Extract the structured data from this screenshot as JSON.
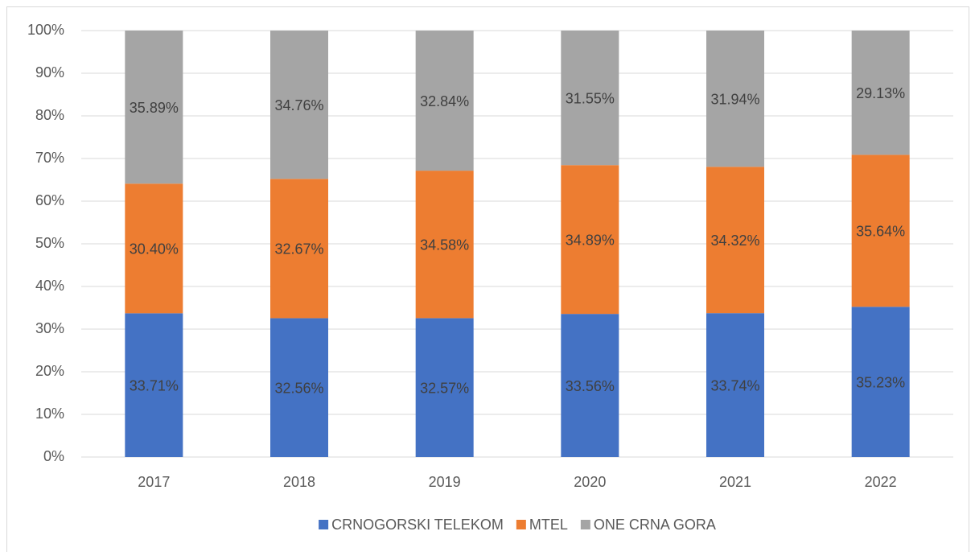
{
  "chart_data": {
    "type": "bar",
    "stacked": true,
    "categories": [
      "2017",
      "2018",
      "2019",
      "2020",
      "2021",
      "2022"
    ],
    "series": [
      {
        "name": "CRNOGORSKI TELEKOM",
        "color": "#4472c4",
        "values": [
          33.71,
          32.56,
          32.57,
          33.56,
          33.74,
          35.23
        ],
        "value_labels": [
          "33.71%",
          "32.56%",
          "32.57%",
          "33.56%",
          "33.74%",
          "35.23%"
        ]
      },
      {
        "name": "MTEL",
        "color": "#ed7d31",
        "values": [
          30.4,
          32.67,
          34.58,
          34.89,
          34.32,
          35.64
        ],
        "value_labels": [
          "30.40%",
          "32.67%",
          "34.58%",
          "34.89%",
          "34.32%",
          "35.64%"
        ]
      },
      {
        "name": "ONE CRNA GORA",
        "color": "#a5a5a5",
        "values": [
          35.89,
          34.76,
          32.84,
          31.55,
          31.94,
          29.13
        ],
        "value_labels": [
          "35.89%",
          "34.76%",
          "32.84%",
          "31.55%",
          "31.94%",
          "29.13%"
        ]
      }
    ],
    "ylim": [
      0,
      100
    ],
    "yticks": [
      {
        "value": 0,
        "label": "0%"
      },
      {
        "value": 10,
        "label": "10%"
      },
      {
        "value": 20,
        "label": "20%"
      },
      {
        "value": 30,
        "label": "30%"
      },
      {
        "value": 40,
        "label": "40%"
      },
      {
        "value": 50,
        "label": "50%"
      },
      {
        "value": 60,
        "label": "60%"
      },
      {
        "value": 70,
        "label": "70%"
      },
      {
        "value": 80,
        "label": "80%"
      },
      {
        "value": 90,
        "label": "90%"
      },
      {
        "value": 100,
        "label": "100%"
      }
    ],
    "grid": true,
    "legend": "bottom"
  }
}
